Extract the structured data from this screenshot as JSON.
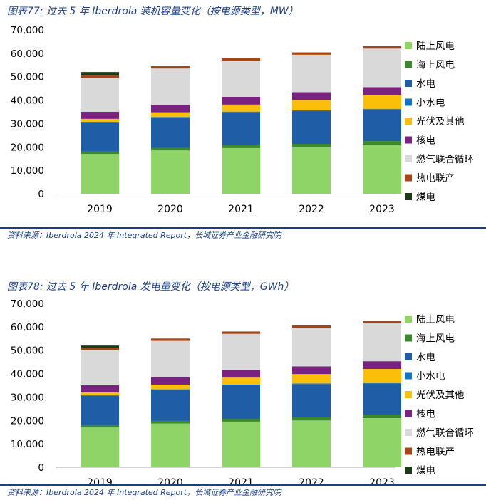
{
  "colors": {
    "陆上风电": "#8ed466",
    "海上风电": "#3a8a2c",
    "水电": "#1f5ea6",
    "小水电": "#0e74c4",
    "光伏及其他": "#fbbf0a",
    "核电": "#7a2280",
    "燃气联合循环": "#d9d9d9",
    "热电联产": "#a84516",
    "煤电": "#1a3d17"
  },
  "figures": [
    {
      "caption": "图表77: 过去 5 年 Iberdrola 装机容量变化（按电源类型，MW）",
      "source": "资料来源：Iberdrola 2024 年 Integrated Report，长城证券产业金融研究院",
      "chart_data": {
        "type": "bar",
        "stacked": true,
        "title": "",
        "xlabel": "",
        "ylabel": "",
        "ylim": [
          0,
          70000
        ],
        "yticks": [
          0,
          10000,
          20000,
          30000,
          40000,
          50000,
          60000,
          70000
        ],
        "ytick_labels": [
          "0",
          "10,000",
          "20,000",
          "30,000",
          "40,000",
          "50,000",
          "60,000",
          "70,000"
        ],
        "categories": [
          "2019",
          "2020",
          "2021",
          "2022",
          "2023"
        ],
        "legend_position": "right",
        "series": [
          {
            "name": "陆上风电",
            "values": [
              17000,
              18500,
              19500,
              20000,
              21000
            ]
          },
          {
            "name": "海上风电",
            "values": [
              1000,
              1000,
              1300,
              1300,
              1500
            ]
          },
          {
            "name": "水电",
            "values": [
              12500,
              13000,
              14000,
              14000,
              13500
            ]
          },
          {
            "name": "小水电",
            "values": [
              300,
              300,
              300,
              300,
              300
            ]
          },
          {
            "name": "光伏及其他",
            "values": [
              1200,
              2000,
              3000,
              4500,
              6000
            ]
          },
          {
            "name": "核电",
            "values": [
              3000,
              3200,
              3300,
              3300,
              3200
            ]
          },
          {
            "name": "燃气联合循环",
            "values": [
              14500,
              15500,
              15500,
              16000,
              16500
            ]
          },
          {
            "name": "热电联产",
            "values": [
              1000,
              1000,
              1000,
              1000,
              1000
            ]
          },
          {
            "name": "煤电",
            "values": [
              1500,
              0,
              0,
              0,
              0
            ]
          }
        ]
      }
    },
    {
      "caption": "图表78: 过去 5 年 Iberdrola 发电量变化（按电源类型，GWh）",
      "source": "资料来源：Iberdrola 2024 年 Integrated Report，长城证券产业金融研究院",
      "chart_data": {
        "type": "bar",
        "stacked": true,
        "title": "",
        "xlabel": "",
        "ylabel": "",
        "ylim": [
          0,
          70000
        ],
        "yticks": [
          0,
          10000,
          20000,
          30000,
          40000,
          50000,
          60000,
          70000
        ],
        "ytick_labels": [
          "0",
          "10,000",
          "20,000",
          "30,000",
          "40,000",
          "50,000",
          "60,000",
          "70,000"
        ],
        "categories": [
          "2019",
          "2020",
          "2021",
          "2022",
          "2023"
        ],
        "legend_position": "right",
        "series": [
          {
            "name": "陆上风电",
            "values": [
              17000,
              18700,
              19500,
              20000,
              21000
            ]
          },
          {
            "name": "海上风电",
            "values": [
              1000,
              1100,
              1200,
              1300,
              1500
            ]
          },
          {
            "name": "水电",
            "values": [
              12500,
              13200,
              14300,
              14200,
              13200
            ]
          },
          {
            "name": "小水电",
            "values": [
              300,
              300,
              300,
              300,
              300
            ]
          },
          {
            "name": "光伏及其他",
            "values": [
              1200,
              2000,
              3000,
              4000,
              6000
            ]
          },
          {
            "name": "核电",
            "values": [
              3000,
              3200,
              3200,
              3300,
              3300
            ]
          },
          {
            "name": "燃气联合循环",
            "values": [
              15000,
              15500,
              15500,
              16500,
              16200
            ]
          },
          {
            "name": "热电联产",
            "values": [
              1000,
              1000,
              1000,
              1000,
              1000
            ]
          },
          {
            "name": "煤电",
            "values": [
              1000,
              0,
              0,
              0,
              0
            ]
          }
        ]
      }
    }
  ]
}
